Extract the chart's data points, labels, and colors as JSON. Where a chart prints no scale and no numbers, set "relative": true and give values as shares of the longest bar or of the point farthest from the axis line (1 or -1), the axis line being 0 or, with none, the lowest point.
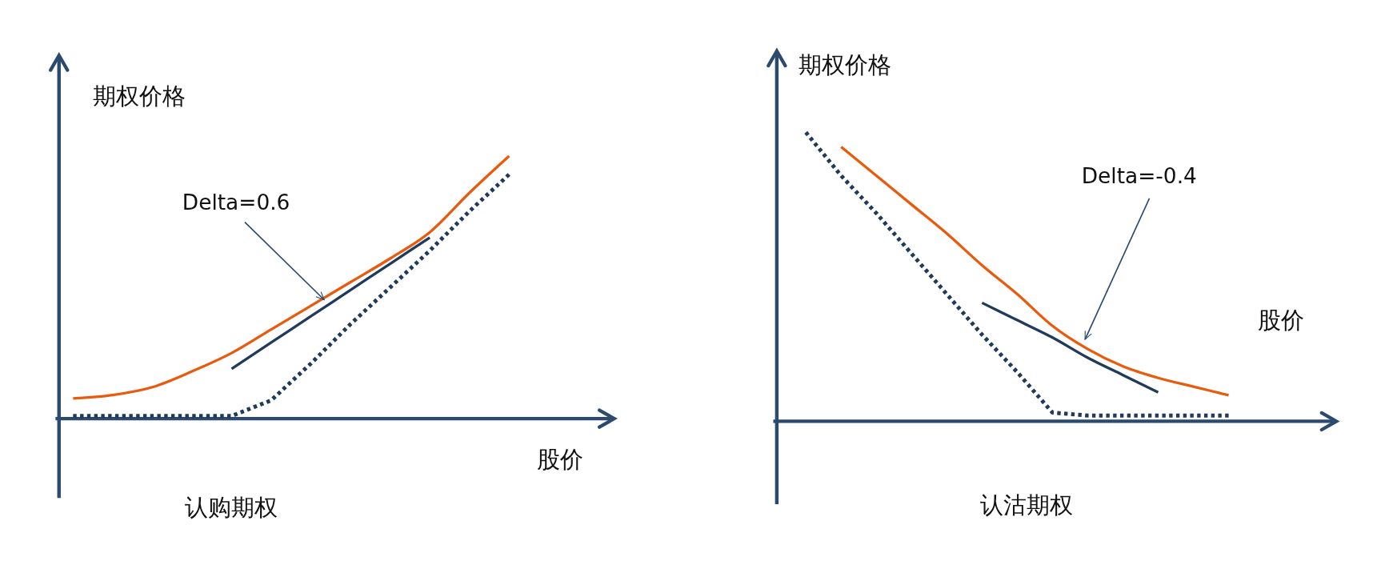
{
  "chart_data": [
    {
      "type": "line",
      "title": "认购期权",
      "xlabel": "股价",
      "ylabel": "期权价格",
      "relative": true,
      "annotations": [
        "Delta=0.6"
      ],
      "categories": [
        null,
        null,
        null,
        null,
        null,
        null,
        null,
        null,
        null,
        null,
        null,
        null
      ],
      "series": [
        {
          "color": "#e85a0c",
          "values": [
            0.077,
            0.09,
            0.12,
            0.18,
            0.25,
            0.34,
            0.43,
            0.52,
            0.61,
            0.71,
            0.86,
            1.0
          ]
        },
        {
          "color": "#1f3a5a",
          "line_style": "dotted",
          "values": [
            0.01,
            0.01,
            0.01,
            0.01,
            0.01,
            0.07,
            0.21,
            0.36,
            0.5,
            0.64,
            0.79,
            0.93
          ]
        },
        {
          "color": "#1f3a5a",
          "values": [
            null,
            null,
            null,
            null,
            0.19,
            0.29,
            0.39,
            0.49,
            0.59,
            0.69,
            null,
            null
          ]
        }
      ]
    },
    {
      "type": "line",
      "title": "认沽期权",
      "xlabel": "股价",
      "ylabel": "期权价格",
      "relative": true,
      "annotations": [
        "Delta=-0.4"
      ],
      "categories": [
        null,
        null,
        null,
        null,
        null,
        null,
        null,
        null,
        null,
        null,
        null,
        null,
        null
      ],
      "series": [
        {
          "color": "#e85a0c",
          "values": [
            null,
            0.95,
            0.85,
            0.75,
            0.65,
            0.54,
            0.44,
            0.33,
            0.25,
            0.19,
            0.15,
            0.12,
            0.09
          ]
        },
        {
          "color": "#1f3a5a",
          "line_style": "dotted",
          "values": [
            1.0,
            0.85,
            0.72,
            0.58,
            0.44,
            0.3,
            0.17,
            0.03,
            0.02,
            0.02,
            0.02,
            0.02,
            0.02
          ]
        },
        {
          "color": "#1f3a5a",
          "values": [
            null,
            null,
            null,
            null,
            null,
            0.41,
            0.35,
            0.29,
            0.22,
            0.16,
            0.1,
            null,
            null
          ]
        }
      ]
    }
  ]
}
